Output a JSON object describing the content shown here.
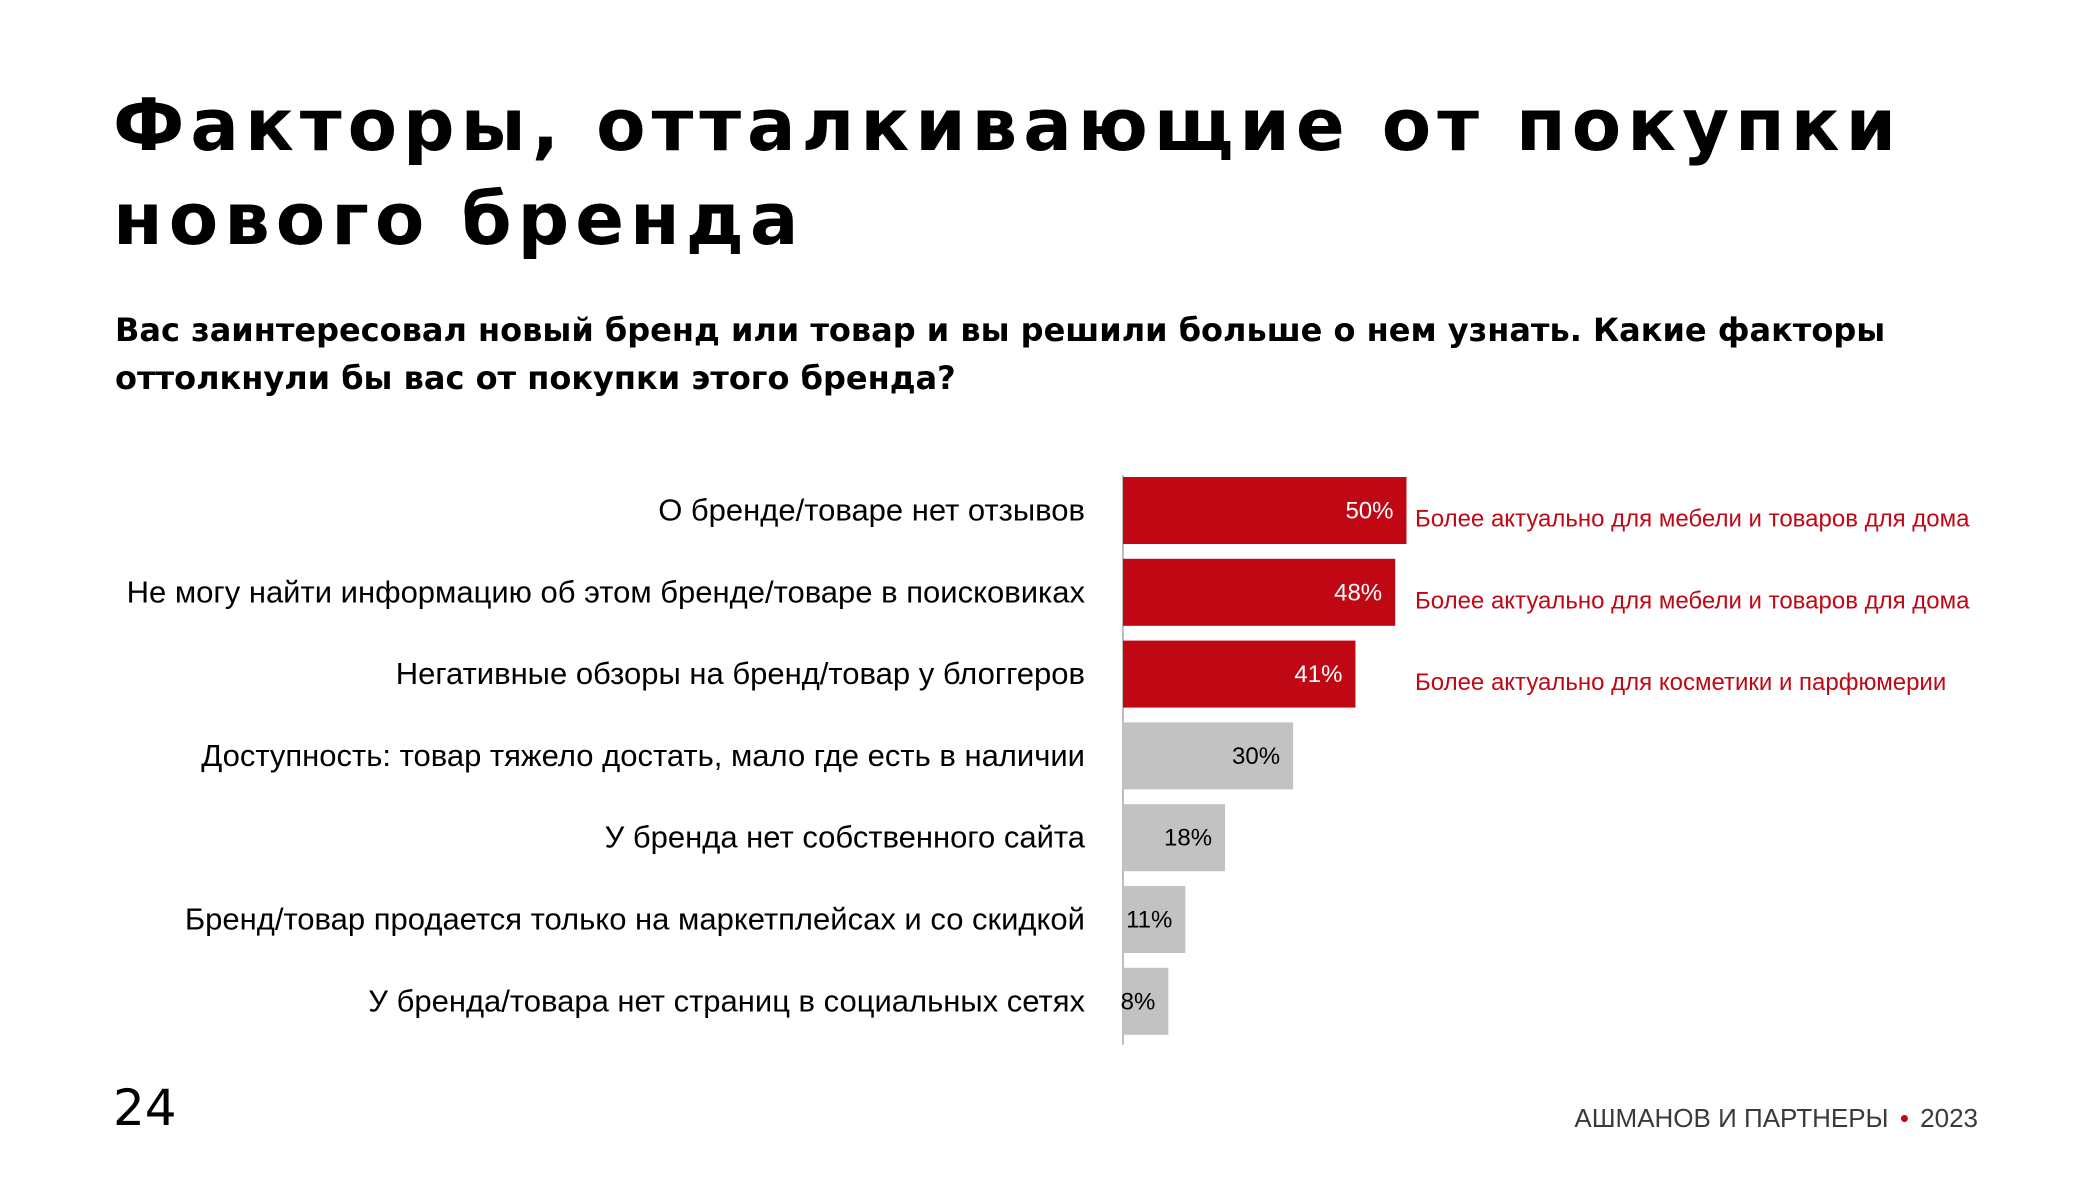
{
  "title": "Факторы, отталкивающие от покупки нового бренда",
  "subtitle": "Вас заинтересовал новый бренд или товар и вы решили больше о нем узнать. Какие факторы оттолкнули бы вас от покупки этого бренда?",
  "page_number": "24",
  "footer": {
    "brand": "АШМАНОВ И ПАРТНЕРЫ",
    "dot": "•",
    "year": "2023"
  },
  "colors": {
    "highlight": "#c00714",
    "neutral": "#c2c2c2",
    "axis": "#bdbdbd",
    "value_on_highlight": "#ffffff",
    "value_on_neutral": "#000000",
    "note": "#c00714"
  },
  "chart_data": {
    "type": "bar",
    "orientation": "horizontal",
    "value_format": "percent",
    "xlim": [
      0,
      100
    ],
    "categories": [
      "О бренде/товаре нет отзывов",
      "Не могу найти информацию об этом бренде/товаре в поисковиках",
      "Негативные обзоры на бренд/товар у блоггеров",
      "Доступность: товар тяжело достать, мало где есть в наличии",
      "У бренда нет собственного сайта",
      "Бренд/товар продается только на маркетплейсах и со скидкой",
      "У бренда/товара нет страниц в социальных сетях"
    ],
    "values": [
      50,
      48,
      41,
      30,
      18,
      11,
      8
    ],
    "value_labels": [
      "50%",
      "48%",
      "41%",
      "30%",
      "18%",
      "11%",
      "8%"
    ],
    "highlighted": [
      true,
      true,
      true,
      false,
      false,
      false,
      false
    ],
    "annotations": [
      "Более актуально для мебели и товаров для дома",
      "Более актуально для мебели и товаров для дома",
      "Более актуально для косметики и парфюмерии",
      "",
      "",
      "",
      ""
    ]
  }
}
